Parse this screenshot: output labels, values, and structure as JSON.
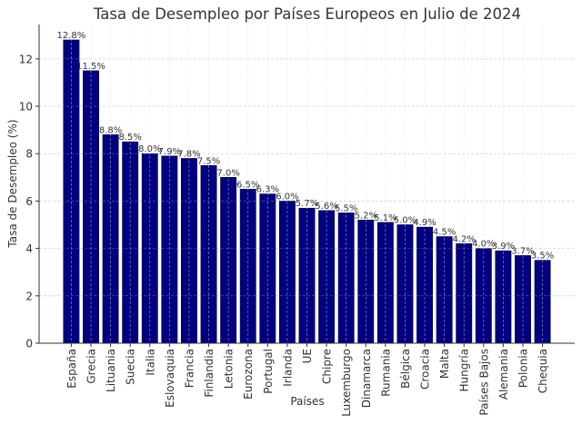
{
  "chart_data": {
    "type": "bar",
    "title": "Tasa de Desempleo por Países Europeos en Julio de 2024",
    "xlabel": "Países",
    "ylabel": "Tasa de Desempleo (%)",
    "categories": [
      "España",
      "Grecia",
      "Lituania",
      "Suecia",
      "Italia",
      "Eslovaquia",
      "Francia",
      "Finlandia",
      "Letonia",
      "Eurozona",
      "Portugal",
      "Irlanda",
      "UE",
      "Chipre",
      "Luxemburgo",
      "Dinamarca",
      "Rumania",
      "Bélgica",
      "Croacia",
      "Malta",
      "Hungría",
      "Países Bajos",
      "Alemania",
      "Polonia",
      "Chequia"
    ],
    "values": [
      12.8,
      11.5,
      8.8,
      8.5,
      8.0,
      7.9,
      7.8,
      7.5,
      7.0,
      6.5,
      6.3,
      6.0,
      5.7,
      5.6,
      5.5,
      5.2,
      5.1,
      5.0,
      4.9,
      4.5,
      4.2,
      4.0,
      3.9,
      3.7,
      3.5
    ],
    "data_labels": [
      "12.8%",
      "11.5%",
      "8.8%",
      "8.5%",
      "8.0%",
      "7.9%",
      "7.8%",
      "7.5%",
      "7.0%",
      "6.5%",
      "6.3%",
      "6.0%",
      "5.7%",
      "5.6%",
      "5.5%",
      "5.2%",
      "5.1%",
      "5.0%",
      "4.9%",
      "4.5%",
      "4.2%",
      "4.0%",
      "3.9%",
      "3.7%",
      "3.5%"
    ],
    "ylim": [
      0,
      13.45
    ],
    "yticks": [
      0,
      2,
      4,
      6,
      8,
      10,
      12
    ],
    "grid": true,
    "bar_color": "#000080"
  }
}
